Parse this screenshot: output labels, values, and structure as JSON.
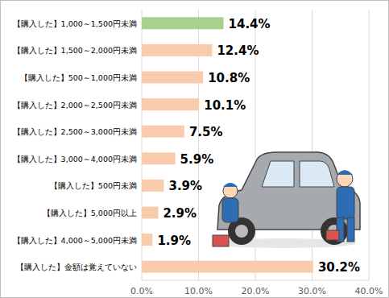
{
  "chart_data": {
    "type": "bar",
    "orientation": "horizontal",
    "categories": [
      "【購入した】1,000～1,500円未満",
      "【購入した】1,500～2,000円未満",
      "【購入した】500～1,000円未満",
      "【購入した】2,000～2,500円未満",
      "【購入した】2,500～3,000円未満",
      "【購入した】3,000～4,000円未満",
      "【購入した】500円未満",
      "【購入した】5,000円以上",
      "【購入した】4,000～5,000円未満",
      "【購入した】金額は覚えていない"
    ],
    "values": [
      14.4,
      12.4,
      10.8,
      10.1,
      7.5,
      5.9,
      3.9,
      2.9,
      1.9,
      30.2
    ],
    "value_labels": [
      "14.4%",
      "12.4%",
      "10.8%",
      "10.1%",
      "7.5%",
      "5.9%",
      "3.9%",
      "2.9%",
      "1.9%",
      "30.2%"
    ],
    "colors": [
      "#a9d18e",
      "#f8cbad",
      "#f8cbad",
      "#f8cbad",
      "#f8cbad",
      "#f8cbad",
      "#f8cbad",
      "#f8cbad",
      "#f8cbad",
      "#f8cbad"
    ],
    "xlim": [
      0,
      40
    ],
    "xticks": [
      {
        "value": 0,
        "label": "0.0%"
      },
      {
        "value": 10,
        "label": "10.0%"
      },
      {
        "value": 20,
        "label": "20.0%"
      },
      {
        "value": 30,
        "label": "30.0%"
      },
      {
        "value": 40,
        "label": "40.0%"
      }
    ],
    "grid": true,
    "data_labels": true
  }
}
